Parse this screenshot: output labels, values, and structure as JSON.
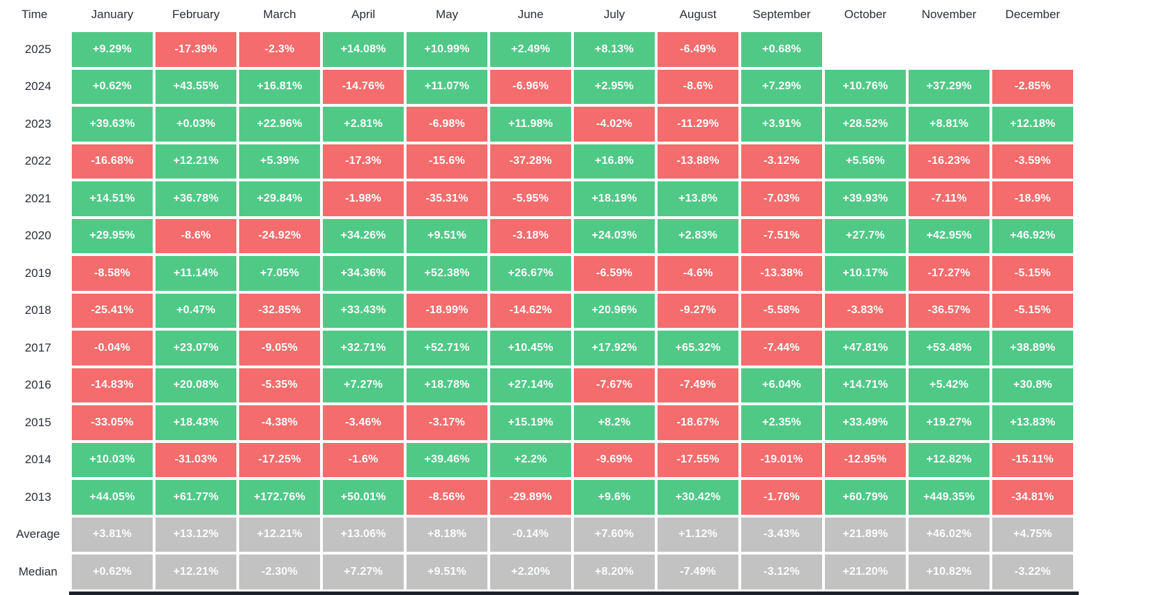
{
  "header": {
    "corner_label": "Time"
  },
  "colors": {
    "positive": "#50c987",
    "negative": "#f46c6c",
    "summary": "#c2c2c2",
    "cell_text": "#fcfdfd",
    "label_text": "#2a2e39",
    "bottom_bar": "#1e222d",
    "background": "#ffffff"
  },
  "chart_data": {
    "type": "heatmap",
    "title": "Monthly returns heatmap by year",
    "columns": [
      "January",
      "February",
      "March",
      "April",
      "May",
      "June",
      "July",
      "August",
      "September",
      "October",
      "November",
      "December"
    ],
    "rows": [
      {
        "label": "2025",
        "kind": "year",
        "display": [
          "+9.29%",
          "-17.39%",
          "-2.3%",
          "+14.08%",
          "+10.99%",
          "+2.49%",
          "+8.13%",
          "-6.49%",
          "+0.68%",
          null,
          null,
          null
        ],
        "values": [
          9.29,
          -17.39,
          -2.3,
          14.08,
          10.99,
          2.49,
          8.13,
          -6.49,
          0.68,
          null,
          null,
          null
        ]
      },
      {
        "label": "2024",
        "kind": "year",
        "display": [
          "+0.62%",
          "+43.55%",
          "+16.81%",
          "-14.76%",
          "+11.07%",
          "-6.96%",
          "+2.95%",
          "-8.6%",
          "+7.29%",
          "+10.76%",
          "+37.29%",
          "-2.85%"
        ],
        "values": [
          0.62,
          43.55,
          16.81,
          -14.76,
          11.07,
          -6.96,
          2.95,
          -8.6,
          7.29,
          10.76,
          37.29,
          -2.85
        ]
      },
      {
        "label": "2023",
        "kind": "year",
        "display": [
          "+39.63%",
          "+0.03%",
          "+22.96%",
          "+2.81%",
          "-6.98%",
          "+11.98%",
          "-4.02%",
          "-11.29%",
          "+3.91%",
          "+28.52%",
          "+8.81%",
          "+12.18%"
        ],
        "values": [
          39.63,
          0.03,
          22.96,
          2.81,
          -6.98,
          11.98,
          -4.02,
          -11.29,
          3.91,
          28.52,
          8.81,
          12.18
        ]
      },
      {
        "label": "2022",
        "kind": "year",
        "display": [
          "-16.68%",
          "+12.21%",
          "+5.39%",
          "-17.3%",
          "-15.6%",
          "-37.28%",
          "+16.8%",
          "-13.88%",
          "-3.12%",
          "+5.56%",
          "-16.23%",
          "-3.59%"
        ],
        "values": [
          -16.68,
          12.21,
          5.39,
          -17.3,
          -15.6,
          -37.28,
          16.8,
          -13.88,
          -3.12,
          5.56,
          -16.23,
          -3.59
        ]
      },
      {
        "label": "2021",
        "kind": "year",
        "display": [
          "+14.51%",
          "+36.78%",
          "+29.84%",
          "-1.98%",
          "-35.31%",
          "-5.95%",
          "+18.19%",
          "+13.8%",
          "-7.03%",
          "+39.93%",
          "-7.11%",
          "-18.9%"
        ],
        "values": [
          14.51,
          36.78,
          29.84,
          -1.98,
          -35.31,
          -5.95,
          18.19,
          13.8,
          -7.03,
          39.93,
          -7.11,
          -18.9
        ]
      },
      {
        "label": "2020",
        "kind": "year",
        "display": [
          "+29.95%",
          "-8.6%",
          "-24.92%",
          "+34.26%",
          "+9.51%",
          "-3.18%",
          "+24.03%",
          "+2.83%",
          "-7.51%",
          "+27.7%",
          "+42.95%",
          "+46.92%"
        ],
        "values": [
          29.95,
          -8.6,
          -24.92,
          34.26,
          9.51,
          -3.18,
          24.03,
          2.83,
          -7.51,
          27.7,
          42.95,
          46.92
        ]
      },
      {
        "label": "2019",
        "kind": "year",
        "display": [
          "-8.58%",
          "+11.14%",
          "+7.05%",
          "+34.36%",
          "+52.38%",
          "+26.67%",
          "-6.59%",
          "-4.6%",
          "-13.38%",
          "+10.17%",
          "-17.27%",
          "-5.15%"
        ],
        "values": [
          -8.58,
          11.14,
          7.05,
          34.36,
          52.38,
          26.67,
          -6.59,
          -4.6,
          -13.38,
          10.17,
          -17.27,
          -5.15
        ]
      },
      {
        "label": "2018",
        "kind": "year",
        "display": [
          "-25.41%",
          "+0.47%",
          "-32.85%",
          "+33.43%",
          "-18.99%",
          "-14.62%",
          "+20.96%",
          "-9.27%",
          "-5.58%",
          "-3.83%",
          "-36.57%",
          "-5.15%"
        ],
        "values": [
          -25.41,
          0.47,
          -32.85,
          33.43,
          -18.99,
          -14.62,
          20.96,
          -9.27,
          -5.58,
          -3.83,
          -36.57,
          -5.15
        ]
      },
      {
        "label": "2017",
        "kind": "year",
        "display": [
          "-0.04%",
          "+23.07%",
          "-9.05%",
          "+32.71%",
          "+52.71%",
          "+10.45%",
          "+17.92%",
          "+65.32%",
          "-7.44%",
          "+47.81%",
          "+53.48%",
          "+38.89%"
        ],
        "values": [
          -0.04,
          23.07,
          -9.05,
          32.71,
          52.71,
          10.45,
          17.92,
          65.32,
          -7.44,
          47.81,
          53.48,
          38.89
        ]
      },
      {
        "label": "2016",
        "kind": "year",
        "display": [
          "-14.83%",
          "+20.08%",
          "-5.35%",
          "+7.27%",
          "+18.78%",
          "+27.14%",
          "-7.67%",
          "-7.49%",
          "+6.04%",
          "+14.71%",
          "+5.42%",
          "+30.8%"
        ],
        "values": [
          -14.83,
          20.08,
          -5.35,
          7.27,
          18.78,
          27.14,
          -7.67,
          -7.49,
          6.04,
          14.71,
          5.42,
          30.8
        ]
      },
      {
        "label": "2015",
        "kind": "year",
        "display": [
          "-33.05%",
          "+18.43%",
          "-4.38%",
          "-3.46%",
          "-3.17%",
          "+15.19%",
          "+8.2%",
          "-18.67%",
          "+2.35%",
          "+33.49%",
          "+19.27%",
          "+13.83%"
        ],
        "values": [
          -33.05,
          18.43,
          -4.38,
          -3.46,
          -3.17,
          15.19,
          8.2,
          -18.67,
          2.35,
          33.49,
          19.27,
          13.83
        ]
      },
      {
        "label": "2014",
        "kind": "year",
        "display": [
          "+10.03%",
          "-31.03%",
          "-17.25%",
          "-1.6%",
          "+39.46%",
          "+2.2%",
          "-9.69%",
          "-17.55%",
          "-19.01%",
          "-12.95%",
          "+12.82%",
          "-15.11%"
        ],
        "values": [
          10.03,
          -31.03,
          -17.25,
          -1.6,
          39.46,
          2.2,
          -9.69,
          -17.55,
          -19.01,
          -12.95,
          12.82,
          -15.11
        ]
      },
      {
        "label": "2013",
        "kind": "year",
        "display": [
          "+44.05%",
          "+61.77%",
          "+172.76%",
          "+50.01%",
          "-8.56%",
          "-29.89%",
          "+9.6%",
          "+30.42%",
          "-1.76%",
          "+60.79%",
          "+449.35%",
          "-34.81%"
        ],
        "values": [
          44.05,
          61.77,
          172.76,
          50.01,
          -8.56,
          -29.89,
          9.6,
          30.42,
          -1.76,
          60.79,
          449.35,
          -34.81
        ]
      },
      {
        "label": "Average",
        "kind": "summary",
        "display": [
          "+3.81%",
          "+13.12%",
          "+12.21%",
          "+13.06%",
          "+8.18%",
          "-0.14%",
          "+7.60%",
          "+1.12%",
          "-3.43%",
          "+21.89%",
          "+46.02%",
          "+4.75%"
        ],
        "values": [
          3.81,
          13.12,
          12.21,
          13.06,
          8.18,
          -0.14,
          7.6,
          1.12,
          -3.43,
          21.89,
          46.02,
          4.75
        ]
      },
      {
        "label": "Median",
        "kind": "summary",
        "display": [
          "+0.62%",
          "+12.21%",
          "-2.30%",
          "+7.27%",
          "+9.51%",
          "+2.20%",
          "+8.20%",
          "-7.49%",
          "-3.12%",
          "+21.20%",
          "+10.82%",
          "-3.22%"
        ],
        "values": [
          0.62,
          12.21,
          -2.3,
          7.27,
          9.51,
          2.2,
          8.2,
          -7.49,
          -3.12,
          21.2,
          10.82,
          -3.22
        ]
      }
    ]
  }
}
